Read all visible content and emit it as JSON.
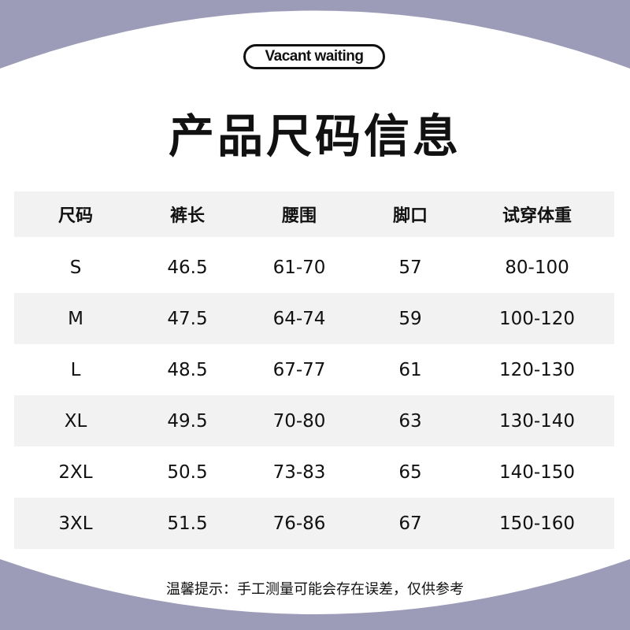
{
  "colors": {
    "background": "#9c9cb9",
    "panel": "#ffffff",
    "row_shade": "#f2f2f2"
  },
  "badge": "Vacant waiting",
  "title": "产品尺码信息",
  "table": {
    "headers": [
      "尺码",
      "裤长",
      "腰围",
      "脚口",
      "试穿体重"
    ],
    "rows": [
      [
        "S",
        "46.5",
        "61-70",
        "57",
        "80-100"
      ],
      [
        "M",
        "47.5",
        "64-74",
        "59",
        "100-120"
      ],
      [
        "L",
        "48.5",
        "67-77",
        "61",
        "120-130"
      ],
      [
        "XL",
        "49.5",
        "70-80",
        "63",
        "130-140"
      ],
      [
        "2XL",
        "50.5",
        "73-83",
        "65",
        "140-150"
      ],
      [
        "3XL",
        "51.5",
        "76-86",
        "67",
        "150-160"
      ]
    ]
  },
  "note": "温馨提示：手工测量可能会存在误差，仅供参考"
}
